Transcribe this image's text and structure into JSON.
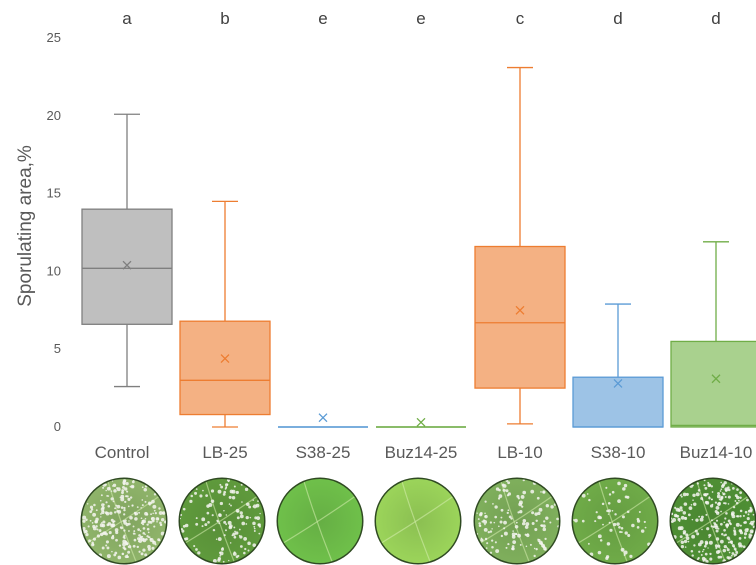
{
  "chart_data": {
    "type": "box",
    "title": "",
    "xlabel": "",
    "ylabel": "Sporulating area,%",
    "ylim": [
      0,
      25
    ],
    "yticks": [
      0,
      5,
      10,
      15,
      20,
      25
    ],
    "grid": false,
    "categories": [
      "Control",
      "LB-25",
      "S38-25",
      "Buz14-25",
      "LB-10",
      "S38-10",
      "Buz14-10"
    ],
    "significance_letters": [
      "a",
      "b",
      "e",
      "e",
      "c",
      "d",
      "d"
    ],
    "boxes": [
      {
        "category": "Control",
        "min": 2.6,
        "q1": 6.6,
        "median": 10.2,
        "q3": 14.0,
        "max": 20.1,
        "mean": 10.4,
        "fill": "#bfbfbf",
        "stroke": "#7f7f7f"
      },
      {
        "category": "LB-25",
        "min": 0.0,
        "q1": 0.8,
        "median": 3.0,
        "q3": 6.8,
        "max": 14.5,
        "mean": 4.4,
        "fill": "#f4b183",
        "stroke": "#ed7d31"
      },
      {
        "category": "S38-25",
        "min": 0.0,
        "q1": 0.0,
        "median": 0.0,
        "q3": 0.0,
        "max": 0.0,
        "mean": 0.6,
        "fill": "#9dc3e6",
        "stroke": "#5b9bd5"
      },
      {
        "category": "Buz14-25",
        "min": 0.0,
        "q1": 0.0,
        "median": 0.0,
        "q3": 0.0,
        "max": 0.0,
        "mean": 0.3,
        "fill": "#a9d18e",
        "stroke": "#70ad47"
      },
      {
        "category": "LB-10",
        "min": 0.2,
        "q1": 2.5,
        "median": 6.7,
        "q3": 11.6,
        "max": 23.1,
        "mean": 7.5,
        "fill": "#f4b183",
        "stroke": "#ed7d31"
      },
      {
        "category": "S38-10",
        "min": 0.0,
        "q1": 0.0,
        "median": 0.0,
        "q3": 3.2,
        "max": 7.9,
        "mean": 2.8,
        "fill": "#9dc3e6",
        "stroke": "#5b9bd5"
      },
      {
        "category": "Buz14-10",
        "min": 0.0,
        "q1": 0.0,
        "median": 0.1,
        "q3": 5.5,
        "max": 11.9,
        "mean": 3.1,
        "fill": "#a9d18e",
        "stroke": "#70ad47"
      }
    ],
    "leaf_images": [
      {
        "category": "Control",
        "spores": "heavy",
        "leaf_color": "#8fb46a"
      },
      {
        "category": "LB-25",
        "spores": "moderate",
        "leaf_color": "#5f9a3c"
      },
      {
        "category": "S38-25",
        "spores": "none",
        "leaf_color": "#6fc04a"
      },
      {
        "category": "Buz14-25",
        "spores": "none",
        "leaf_color": "#9bd45a"
      },
      {
        "category": "LB-10",
        "spores": "moderate",
        "leaf_color": "#7faf5c"
      },
      {
        "category": "S38-10",
        "spores": "light",
        "leaf_color": "#6fab48"
      },
      {
        "category": "Buz14-10",
        "spores": "heavy",
        "leaf_color": "#4e8f34"
      }
    ]
  }
}
